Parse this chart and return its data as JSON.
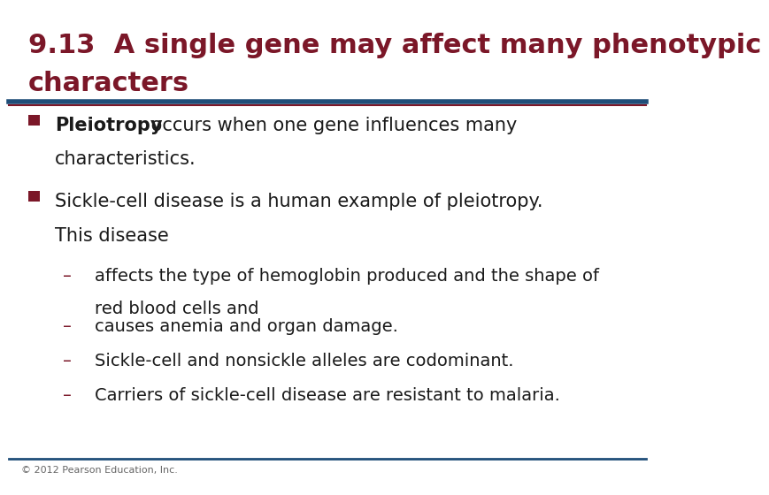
{
  "title_line1": "9.13  A single gene may affect many phenotypic",
  "title_line2": "        characters",
  "title_color": "#7B1728",
  "title_fontsize": 22,
  "separator_color_blue": "#1F4E79",
  "separator_color_red": "#7B1728",
  "bg_color": "#FFFFFF",
  "bullet_color": "#7B1728",
  "bullet1_bold": "Pleiotropy",
  "bullet1_rest": " occurs when one gene influences many",
  "bullet1_line2": "characteristics.",
  "bullet2_line1": "Sickle-cell disease is a human example of pleiotropy.",
  "bullet2_line2": "This disease",
  "sub_bullets_line1": [
    "affects the type of hemoglobin produced and the shape of",
    "causes anemia and organ damage.",
    "Sickle-cell and nonsickle alleles are codominant.",
    "Carriers of sickle-cell disease are resistant to malaria."
  ],
  "sub_bullets_line2": [
    "red blood cells and",
    "",
    "",
    ""
  ],
  "footer_text": "© 2012 Pearson Education, Inc.",
  "footer_fontsize": 8,
  "body_fontsize": 15,
  "sub_fontsize": 14,
  "text_color": "#1a1a1a"
}
